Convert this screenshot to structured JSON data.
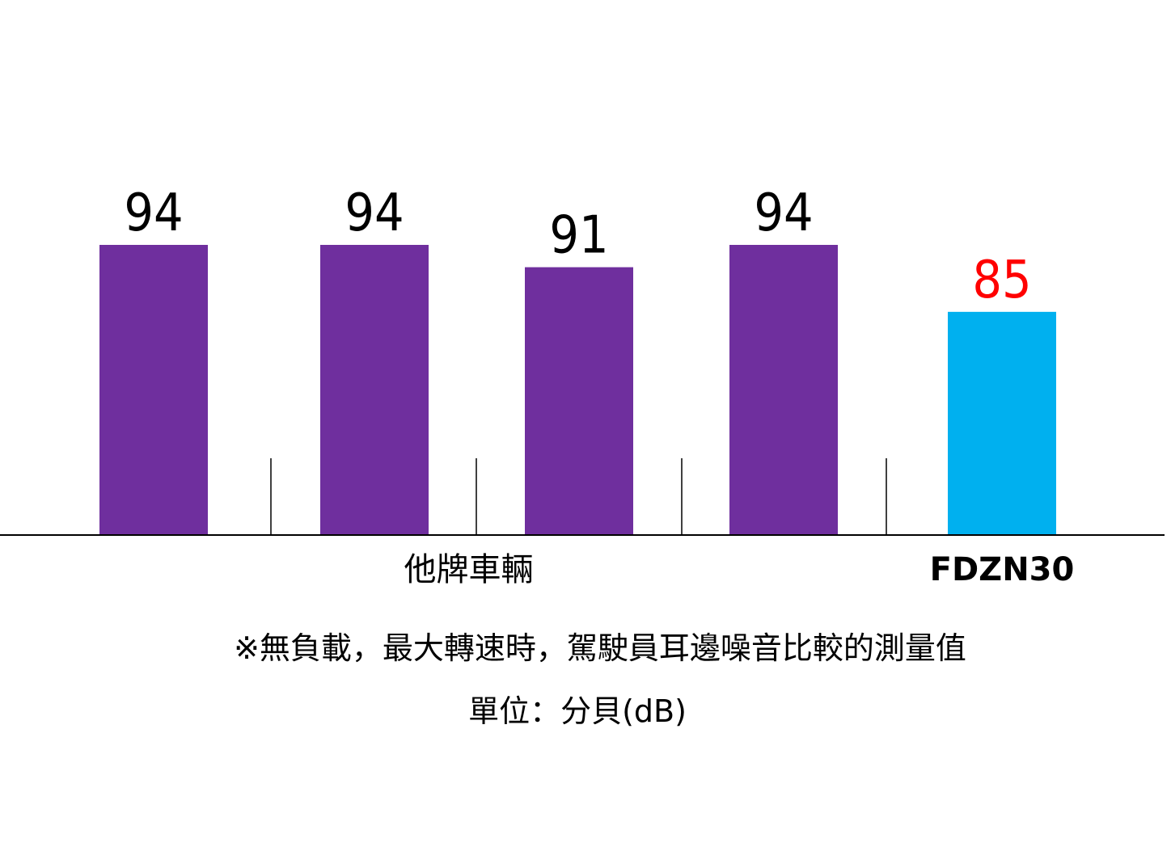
{
  "chart_data": {
    "type": "bar",
    "title": "",
    "xlabel": "",
    "ylabel": "",
    "categories": [
      "",
      "",
      "",
      "",
      ""
    ],
    "values": [
      94,
      94,
      91,
      94,
      85
    ],
    "value_labels": [
      "94",
      "94",
      "91",
      "94",
      "85"
    ],
    "ylim": [
      55,
      100
    ],
    "grid": false,
    "legend": "none",
    "group_labels": [
      {
        "text": "他牌車輛",
        "bars": [
          0,
          3
        ]
      },
      {
        "text": "FDZN30",
        "bars": [
          4,
          4
        ]
      }
    ],
    "colors": {
      "other_bars": "#6f2f9e",
      "highlight_bar": "#00b0ef",
      "other_labels": "#000000",
      "highlight_label": "#ff0000"
    },
    "highlight_index": 4
  },
  "notes": {
    "line1": "※無負載，最大轉速時，駕駛員耳邊噪音比較的測量值",
    "line2": "單位：分貝(dB)"
  }
}
